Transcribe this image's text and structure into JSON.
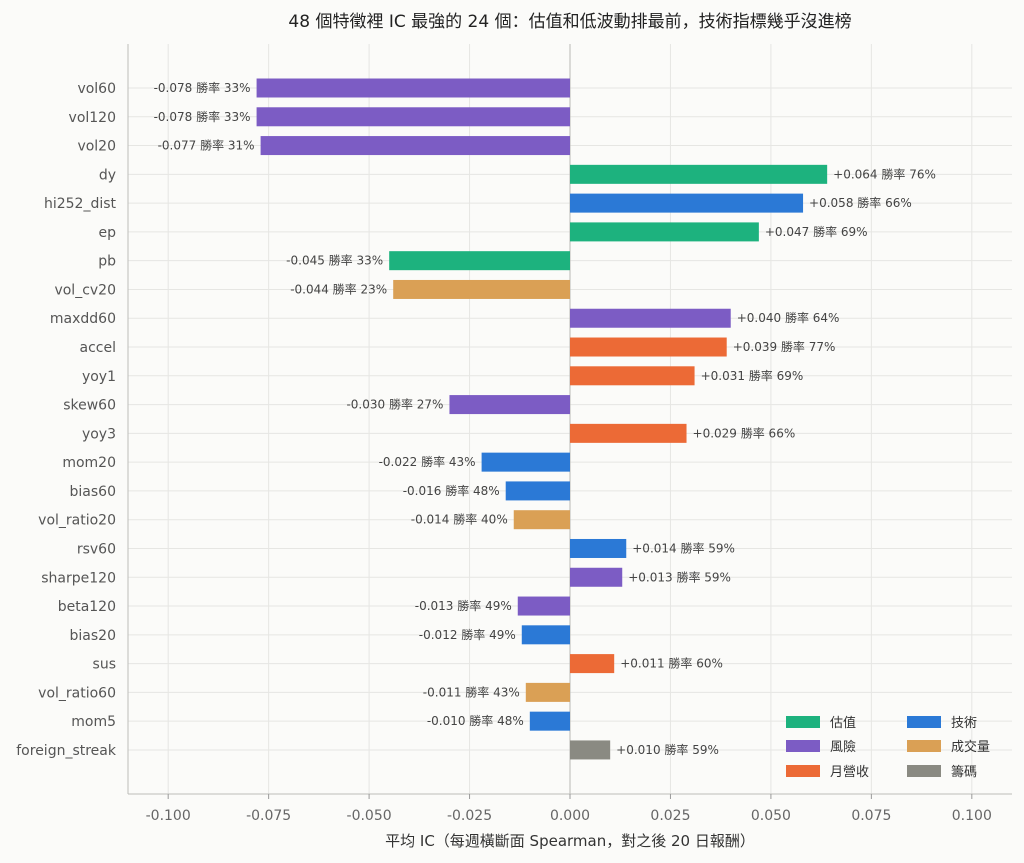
{
  "chart_data": {
    "type": "bar",
    "orientation": "horizontal",
    "title": "48 個特徵裡 IC 最強的 24 個：估值和低波動排最前，技術指標幾乎沒進榜",
    "xlabel": "平均 IC（每週橫斷面 Spearman，對之後 20 日報酬）",
    "xlim": [
      -0.11,
      0.11
    ],
    "xticks": [
      "-0.100",
      "-0.075",
      "-0.050",
      "-0.025",
      "0.000",
      "0.025",
      "0.050",
      "0.075",
      "0.100"
    ],
    "xtick_values": [
      -0.1,
      -0.075,
      -0.05,
      -0.025,
      0,
      0.025,
      0.05,
      0.075,
      0.1
    ],
    "grid": true,
    "legend_position": "bottom-right",
    "groups": [
      {
        "name": "估值",
        "color": "#1db27e"
      },
      {
        "name": "風險",
        "color": "#7c5cc4"
      },
      {
        "name": "月營收",
        "color": "#ec6a36"
      },
      {
        "name": "技術",
        "color": "#2b79d6"
      },
      {
        "name": "成交量",
        "color": "#daa055"
      },
      {
        "name": "籌碼",
        "color": "#8a8a82"
      }
    ],
    "bars": [
      {
        "feature": "vol60",
        "ic": -0.078,
        "label": "-0.078  勝率 33%",
        "group": "風險"
      },
      {
        "feature": "vol120",
        "ic": -0.078,
        "label": "-0.078  勝率 33%",
        "group": "風險"
      },
      {
        "feature": "vol20",
        "ic": -0.077,
        "label": "-0.077  勝率 31%",
        "group": "風險"
      },
      {
        "feature": "dy",
        "ic": 0.064,
        "label": "+0.064  勝率 76%",
        "group": "估值"
      },
      {
        "feature": "hi252_dist",
        "ic": 0.058,
        "label": "+0.058  勝率 66%",
        "group": "技術"
      },
      {
        "feature": "ep",
        "ic": 0.047,
        "label": "+0.047  勝率 69%",
        "group": "估值"
      },
      {
        "feature": "pb",
        "ic": -0.045,
        "label": "-0.045  勝率 33%",
        "group": "估值"
      },
      {
        "feature": "vol_cv20",
        "ic": -0.044,
        "label": "-0.044  勝率 23%",
        "group": "成交量"
      },
      {
        "feature": "maxdd60",
        "ic": 0.04,
        "label": "+0.040  勝率 64%",
        "group": "風險"
      },
      {
        "feature": "accel",
        "ic": 0.039,
        "label": "+0.039  勝率 77%",
        "group": "月營收"
      },
      {
        "feature": "yoy1",
        "ic": 0.031,
        "label": "+0.031  勝率 69%",
        "group": "月營收"
      },
      {
        "feature": "skew60",
        "ic": -0.03,
        "label": "-0.030  勝率 27%",
        "group": "風險"
      },
      {
        "feature": "yoy3",
        "ic": 0.029,
        "label": "+0.029  勝率 66%",
        "group": "月營收"
      },
      {
        "feature": "mom20",
        "ic": -0.022,
        "label": "-0.022  勝率 43%",
        "group": "技術"
      },
      {
        "feature": "bias60",
        "ic": -0.016,
        "label": "-0.016  勝率 48%",
        "group": "技術"
      },
      {
        "feature": "vol_ratio20",
        "ic": -0.014,
        "label": "-0.014  勝率 40%",
        "group": "成交量"
      },
      {
        "feature": "rsv60",
        "ic": 0.014,
        "label": "+0.014  勝率 59%",
        "group": "技術"
      },
      {
        "feature": "sharpe120",
        "ic": 0.013,
        "label": "+0.013  勝率 59%",
        "group": "風險"
      },
      {
        "feature": "beta120",
        "ic": -0.013,
        "label": "-0.013  勝率 49%",
        "group": "風險"
      },
      {
        "feature": "bias20",
        "ic": -0.012,
        "label": "-0.012  勝率 49%",
        "group": "技術"
      },
      {
        "feature": "sus",
        "ic": 0.011,
        "label": "+0.011  勝率 60%",
        "group": "月營收"
      },
      {
        "feature": "vol_ratio60",
        "ic": -0.011,
        "label": "-0.011  勝率 43%",
        "group": "成交量"
      },
      {
        "feature": "mom5",
        "ic": -0.01,
        "label": "-0.010  勝率 48%",
        "group": "技術"
      },
      {
        "feature": "foreign_streak",
        "ic": 0.01,
        "label": "+0.010  勝率 59%",
        "group": "籌碼"
      }
    ]
  }
}
